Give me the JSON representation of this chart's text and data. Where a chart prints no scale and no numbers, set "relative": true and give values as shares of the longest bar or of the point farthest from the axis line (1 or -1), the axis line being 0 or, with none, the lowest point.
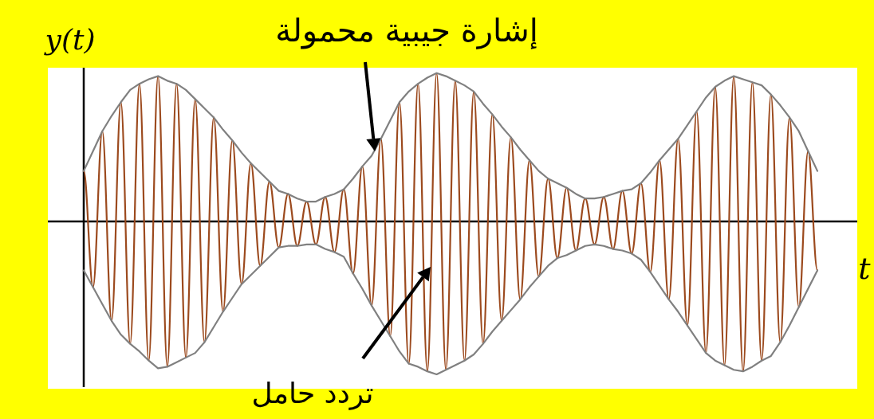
{
  "chart_data": {
    "type": "line",
    "relative": true,
    "xlabel": "t",
    "ylabel": "y(t)",
    "categories": [
      null,
      null,
      null,
      null,
      null,
      null,
      null,
      null,
      null,
      null,
      null,
      null,
      null,
      null,
      null,
      null,
      null,
      null,
      null,
      null,
      null,
      null,
      null,
      null,
      null,
      null,
      null,
      null,
      null,
      null,
      null,
      null,
      null,
      null,
      null,
      null,
      null,
      null,
      null,
      null,
      null,
      null,
      null,
      null,
      null,
      null,
      null,
      null,
      null,
      null,
      null,
      null,
      null,
      null,
      null,
      null,
      null,
      null,
      null,
      null,
      null,
      null,
      null,
      null,
      null,
      null,
      null,
      null,
      null,
      null,
      null,
      null,
      null,
      null,
      null,
      null,
      null,
      null,
      null,
      null
    ],
    "series": [
      {
        "type": "line",
        "color": "#9c4a1e",
        "values": [
          0.33,
          -0.43,
          0.59,
          -0.65,
          0.78,
          -0.8,
          0.9,
          -0.91,
          0.95,
          -0.95,
          0.9,
          -0.89,
          0.8,
          -0.79,
          0.68,
          -0.59,
          0.53,
          -0.41,
          0.38,
          -0.29,
          0.26,
          -0.17,
          0.18,
          -0.16,
          0.13,
          -0.15,
          0.16,
          -0.2,
          0.21,
          -0.34,
          0.36,
          -0.55,
          0.54,
          -0.75,
          0.78,
          -0.93,
          0.9,
          -0.98,
          0.97,
          -0.97,
          0.92,
          -0.91,
          0.85,
          -0.8,
          0.7,
          -0.65,
          0.55,
          -0.51,
          0.4,
          -0.36,
          0.28,
          -0.24,
          0.22,
          -0.19,
          0.15,
          -0.15,
          0.16,
          -0.18,
          0.2,
          -0.21,
          0.25,
          -0.33,
          0.4,
          -0.51,
          0.54,
          -0.68,
          0.72,
          -0.86,
          0.88,
          -0.94,
          0.95,
          -0.98,
          0.91,
          -0.91,
          0.83,
          -0.79,
          0.68,
          -0.56,
          0.46,
          -0.32
        ]
      },
      {
        "type": "line",
        "color": "#808080",
        "values": [
          0.33,
          0.46,
          0.59,
          0.69,
          0.78,
          0.86,
          0.9,
          0.93,
          0.95,
          0.92,
          0.9,
          0.86,
          0.8,
          0.74,
          0.68,
          0.6,
          0.53,
          0.45,
          0.38,
          0.32,
          0.26,
          0.2,
          0.18,
          0.15,
          0.13,
          0.13,
          0.16,
          0.18,
          0.21,
          0.28,
          0.36,
          0.43,
          0.54,
          0.66,
          0.78,
          0.85,
          0.9,
          0.94,
          0.97,
          0.95,
          0.92,
          0.89,
          0.85,
          0.77,
          0.7,
          0.62,
          0.55,
          0.47,
          0.4,
          0.33,
          0.28,
          0.25,
          0.22,
          0.18,
          0.15,
          0.15,
          0.16,
          0.18,
          0.2,
          0.21,
          0.25,
          0.32,
          0.4,
          0.47,
          0.54,
          0.63,
          0.72,
          0.81,
          0.88,
          0.92,
          0.95,
          0.93,
          0.91,
          0.89,
          0.83,
          0.76,
          0.68,
          0.59,
          0.46,
          0.33
        ]
      },
      {
        "type": "line",
        "color": "#808080",
        "values": [
          -0.32,
          -0.43,
          -0.54,
          -0.65,
          -0.74,
          -0.8,
          -0.85,
          -0.91,
          -0.96,
          -0.95,
          -0.92,
          -0.89,
          -0.86,
          -0.79,
          -0.69,
          -0.59,
          -0.5,
          -0.41,
          -0.35,
          -0.29,
          -0.23,
          -0.17,
          -0.16,
          -0.16,
          -0.15,
          -0.15,
          -0.18,
          -0.2,
          -0.23,
          -0.34,
          -0.44,
          -0.55,
          -0.65,
          -0.75,
          -0.85,
          -0.93,
          -0.95,
          -0.98,
          -1.0,
          -0.97,
          -0.94,
          -0.91,
          -0.87,
          -0.8,
          -0.72,
          -0.65,
          -0.58,
          -0.51,
          -0.43,
          -0.36,
          -0.29,
          -0.24,
          -0.22,
          -0.19,
          -0.16,
          -0.15,
          -0.16,
          -0.18,
          -0.19,
          -0.21,
          -0.25,
          -0.33,
          -0.42,
          -0.51,
          -0.59,
          -0.68,
          -0.77,
          -0.86,
          -0.91,
          -0.94,
          -0.97,
          -0.98,
          -0.95,
          -0.91,
          -0.88,
          -0.79,
          -0.68,
          -0.56,
          -0.44,
          -0.32
        ]
      }
    ],
    "annotations": [
      "إشارة جيبية محمولة",
      "تردد حامل"
    ]
  }
}
